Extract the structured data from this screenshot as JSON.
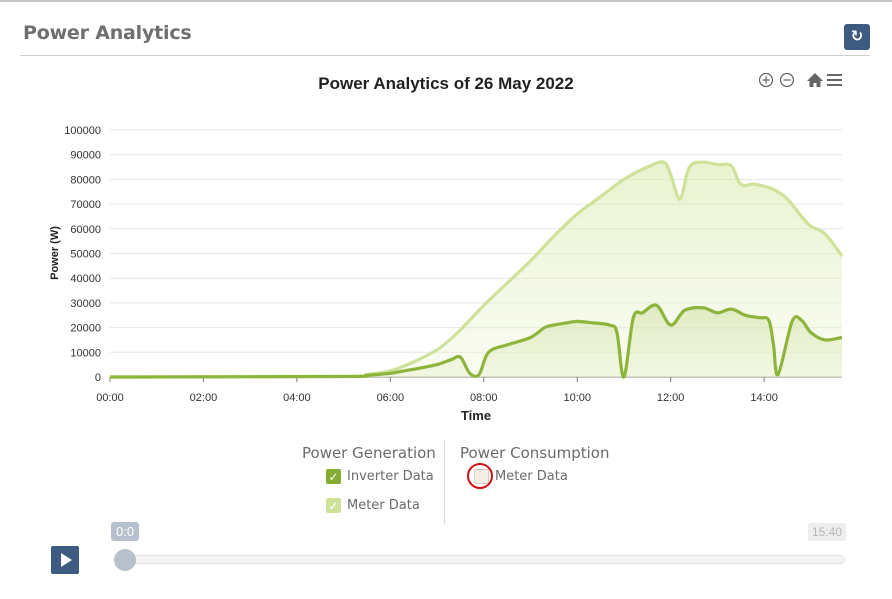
{
  "panel": {
    "title": "Power Analytics",
    "refresh_icon": "refresh-icon"
  },
  "chart_toolbar": {
    "zoom_in_icon": "zoom-in-icon",
    "zoom_out_icon": "zoom-out-icon",
    "home_icon": "home-icon",
    "menu_icon": "menu-icon"
  },
  "legend": {
    "generation_title": "Power Generation",
    "consumption_title": "Power Consumption",
    "inverter_label": "Inverter Data",
    "meter_gen_label": "Meter Data",
    "meter_cons_label": "Meter Data",
    "inverter_checked": true,
    "meter_gen_checked": true,
    "meter_cons_checked": false
  },
  "player": {
    "start_label": "0:0",
    "end_label": "15:40",
    "position": 0,
    "play_icon": "play-icon"
  },
  "colors": {
    "accent": "#3d5a80",
    "meter": "#cfe29a",
    "inverter": "#8db43b",
    "highlight": "#d0101a"
  },
  "chart_data": {
    "type": "area",
    "title": "Power Analytics of 26 May 2022",
    "xlabel": "Time",
    "ylabel": "Power (W)",
    "xlim": [
      0,
      15.667
    ],
    "ylim": [
      0,
      100000
    ],
    "x_ticks": [
      "00:00",
      "02:00",
      "04:00",
      "06:00",
      "08:00",
      "10:00",
      "12:00",
      "14:00"
    ],
    "y_ticks": [
      "0",
      "10000",
      "20000",
      "30000",
      "40000",
      "50000",
      "60000",
      "70000",
      "80000",
      "90000",
      "100000"
    ],
    "grid": true,
    "series": [
      {
        "name": "Meter Data",
        "x": [
          0,
          5.0,
          5.5,
          6.0,
          6.3,
          6.6,
          7.0,
          7.3,
          7.6,
          8.0,
          8.5,
          9.0,
          9.5,
          10.0,
          10.5,
          11.0,
          11.5,
          11.85,
          12.0,
          12.2,
          12.4,
          12.7,
          13.0,
          13.3,
          13.5,
          13.8,
          14.2,
          14.5,
          14.8,
          15.0,
          15.3,
          15.667
        ],
        "y": [
          0,
          300,
          1000,
          2500,
          4500,
          7000,
          11000,
          15500,
          21000,
          29000,
          38000,
          47000,
          57000,
          66000,
          73000,
          80000,
          85000,
          87000,
          82000,
          72000,
          85000,
          87000,
          86000,
          85500,
          78000,
          78000,
          76000,
          72000,
          65000,
          61000,
          58000,
          49000
        ]
      },
      {
        "name": "Inverter Data",
        "x": [
          0,
          5.0,
          5.5,
          6.0,
          6.3,
          6.6,
          7.0,
          7.3,
          7.5,
          7.7,
          7.9,
          8.1,
          8.5,
          9.0,
          9.3,
          9.5,
          9.8,
          10.0,
          10.3,
          10.7,
          10.85,
          11.0,
          11.2,
          11.4,
          11.7,
          12.0,
          12.3,
          12.7,
          13.0,
          13.3,
          13.6,
          13.9,
          14.1,
          14.2,
          14.3,
          14.6,
          14.8,
          15.0,
          15.3,
          15.667
        ],
        "y": [
          0,
          200,
          700,
          1500,
          2500,
          3500,
          5000,
          7000,
          8000,
          1500,
          1000,
          10000,
          13000,
          16000,
          20000,
          21000,
          22000,
          22500,
          22000,
          21000,
          18000,
          0,
          24000,
          26000,
          29000,
          21000,
          27000,
          28000,
          26000,
          27500,
          25000,
          24000,
          23000,
          13000,
          1000,
          22500,
          23000,
          18000,
          15000,
          16000
        ]
      }
    ]
  }
}
